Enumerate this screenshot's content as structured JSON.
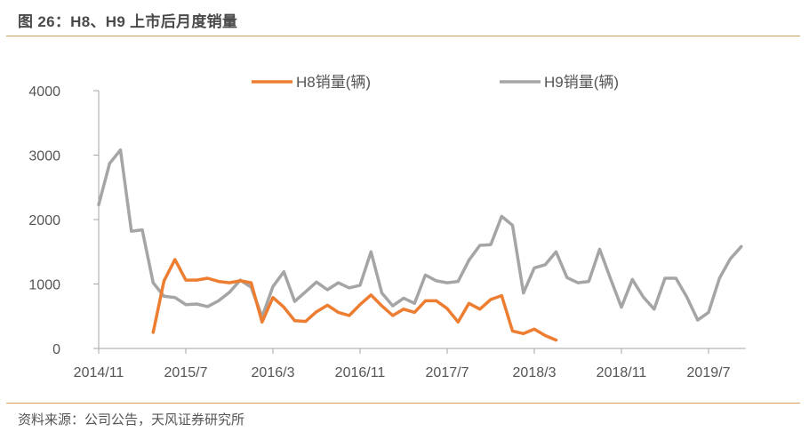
{
  "header": {
    "title": "图 26：H8、H9 上市后月度销量"
  },
  "footer": {
    "source": "资料来源：公司公告，天风证券研究所"
  },
  "colors": {
    "h8": "#ed7d31",
    "h9": "#a5a5a5",
    "axis": "#a6a6a6",
    "rule": "#c9a063"
  },
  "chart_data": {
    "type": "line",
    "title": "图 26：H8、H9 上市后月度销量",
    "xlabel": "",
    "ylabel": "",
    "ylim": [
      0,
      4000
    ],
    "yticks": [
      0,
      1000,
      2000,
      3000,
      4000
    ],
    "ytick_labels": [
      "0",
      "1000",
      "2000",
      "3000",
      "4000"
    ],
    "xtick_labels": [
      "2014/11",
      "2015/7",
      "2016/3",
      "2016/11",
      "2017/7",
      "2018/3",
      "2018/11",
      "2019/7"
    ],
    "xtick_month_index": [
      0,
      8,
      16,
      24,
      32,
      40,
      48,
      56
    ],
    "x_start": "2014/11",
    "x_step": "1 month",
    "grid": false,
    "legend_position": "top",
    "series": [
      {
        "name": "H8销量(辆)",
        "color": "#ed7d31",
        "start_index": 5,
        "values": [
          250,
          1050,
          1380,
          1060,
          1060,
          1090,
          1040,
          1020,
          1050,
          1020,
          410,
          790,
          640,
          430,
          420,
          570,
          670,
          560,
          510,
          680,
          830,
          660,
          510,
          610,
          560,
          740,
          740,
          620,
          410,
          700,
          610,
          760,
          820,
          270,
          230,
          300,
          200,
          130
        ]
      },
      {
        "name": "H9销量(辆)",
        "color": "#a5a5a5",
        "start_index": 0,
        "values": [
          2230,
          2870,
          3080,
          1820,
          1840,
          1020,
          810,
          790,
          680,
          690,
          650,
          740,
          870,
          1060,
          950,
          490,
          960,
          1190,
          730,
          880,
          1030,
          910,
          1020,
          940,
          980,
          1500,
          860,
          660,
          780,
          700,
          1140,
          1050,
          1020,
          1040,
          1370,
          1600,
          1610,
          2050,
          1910,
          860,
          1250,
          1300,
          1500,
          1100,
          1020,
          1040,
          1540,
          1080,
          640,
          1070,
          800,
          610,
          1090,
          1090,
          800,
          440,
          560,
          1090,
          1390,
          1580
        ]
      }
    ]
  }
}
